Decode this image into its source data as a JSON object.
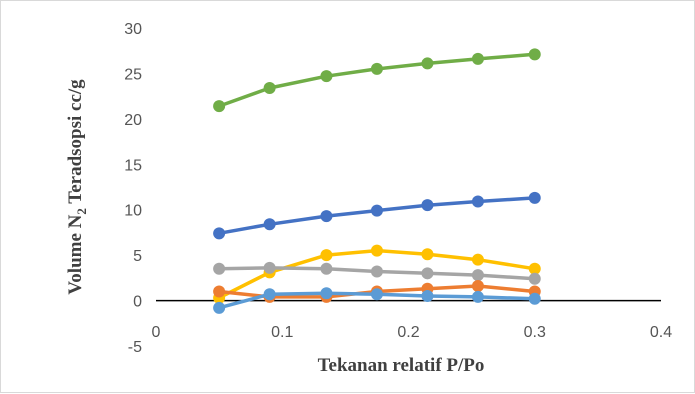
{
  "chart_data": {
    "type": "line",
    "xlabel": "Tekanan relatif P/Po",
    "ylabel_parts": [
      "Volume N",
      "2",
      " Teradsopsi cc/g"
    ],
    "xlim": [
      0,
      0.4
    ],
    "ylim": [
      -5,
      30
    ],
    "x_ticks": [
      0,
      0.1,
      0.2,
      0.3,
      0.4
    ],
    "x_tick_labels": [
      "0",
      "0.1",
      "0.2",
      "0.3",
      "0.4"
    ],
    "y_ticks": [
      -5,
      0,
      5,
      10,
      15,
      20,
      25,
      30
    ],
    "y_tick_labels": [
      "-5",
      "0",
      "5",
      "10",
      "15",
      "20",
      "25",
      "30"
    ],
    "grid": false,
    "legend": "none",
    "x": [
      0.05,
      0.09,
      0.135,
      0.175,
      0.215,
      0.255,
      0.3
    ],
    "series": [
      {
        "color": "#70ad47",
        "values": [
          21.4,
          23.4,
          24.7,
          25.5,
          26.1,
          26.6,
          27.1
        ]
      },
      {
        "color": "#4472c4",
        "values": [
          7.4,
          8.4,
          9.3,
          9.9,
          10.5,
          10.9,
          11.3
        ]
      },
      {
        "color": "#ffc000",
        "values": [
          0.3,
          3.1,
          5.0,
          5.5,
          5.1,
          4.5,
          3.5
        ]
      },
      {
        "color": "#a5a5a5",
        "values": [
          3.5,
          3.6,
          3.5,
          3.2,
          3.0,
          2.8,
          2.4
        ]
      },
      {
        "color": "#ed7d31",
        "values": [
          1.0,
          0.4,
          0.4,
          1.0,
          1.3,
          1.6,
          1.0
        ]
      },
      {
        "color": "#5b9bd5",
        "values": [
          -0.8,
          0.7,
          0.8,
          0.7,
          0.5,
          0.4,
          0.2
        ]
      }
    ]
  }
}
